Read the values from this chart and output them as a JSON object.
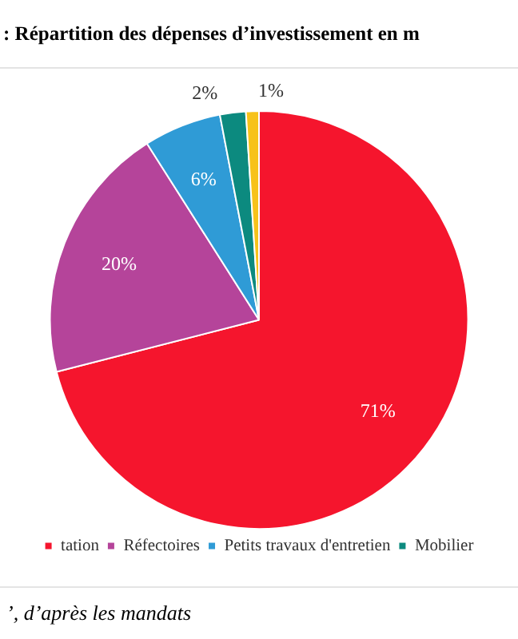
{
  "chart_data": {
    "type": "pie",
    "title": ":  Répartition des dépenses d’investissement en m",
    "categories": [
      "tation",
      "Réfectoires",
      "Petits travaux d'entretien",
      "Mobilier",
      null
    ],
    "values": [
      71,
      20,
      6,
      2,
      1
    ],
    "value_labels": [
      "71%",
      "20%",
      "6%",
      "2%",
      "1%"
    ],
    "colors": [
      "#f5152d",
      "#b5449a",
      "#2f9bd6",
      "#0c8a7f",
      "#f7c21a"
    ],
    "legend": "bottom",
    "annotations": [
      "’, d’après les mandats"
    ]
  }
}
